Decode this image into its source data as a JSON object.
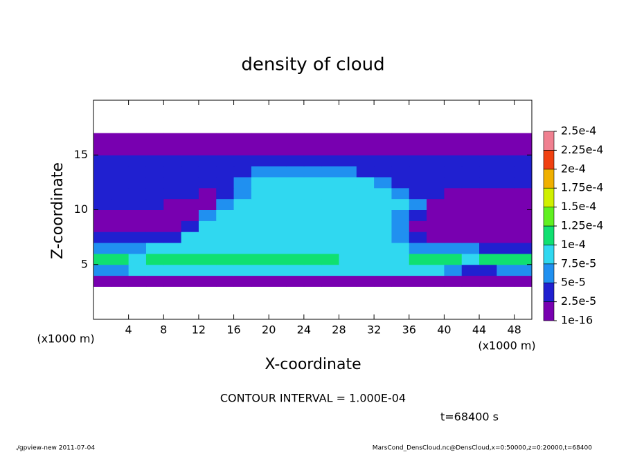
{
  "chart_data": {
    "type": "heatmap",
    "title": "density of cloud",
    "xlabel": "X-coordinate",
    "ylabel": "Z-coordinate",
    "xunit": "(x1000 m)",
    "yunit": "(x1000 m)",
    "annotation": "CONTOUR INTERVAL = 1.000E-04",
    "time_label": "t=68400 s",
    "footer_left": "./gpview-new  2011-07-04",
    "footer_right": "MarsCond_DensCloud.nc@DensCloud,x=0:50000,z=0:20000,t=68400",
    "xlim": [
      0,
      50
    ],
    "ylim": [
      0,
      20
    ],
    "xticks": [
      4,
      8,
      12,
      16,
      20,
      24,
      28,
      32,
      36,
      40,
      44,
      48
    ],
    "yticks": [
      5,
      10,
      15
    ],
    "levels": [
      {
        "value": 1e-16,
        "label": "1e-16"
      },
      {
        "value": 2.5e-05,
        "label": "2.5e-5"
      },
      {
        "value": 5e-05,
        "label": "5e-5"
      },
      {
        "value": 7.5e-05,
        "label": "7.5e-5"
      },
      {
        "value": 0.0001,
        "label": "1e-4"
      },
      {
        "value": 0.000125,
        "label": "1.25e-4"
      },
      {
        "value": 0.00015,
        "label": "1.5e-4"
      },
      {
        "value": 0.000175,
        "label": "1.75e-4"
      },
      {
        "value": 0.0002,
        "label": "2e-4"
      },
      {
        "value": 0.000225,
        "label": "2.25e-4"
      },
      {
        "value": 0.00025,
        "label": "2.5e-4"
      }
    ],
    "colors": [
      "#7800b0",
      "#2020d0",
      "#2090f0",
      "#30d8f0",
      "#10e070",
      "#60f020",
      "#d0f000",
      "#f0b000",
      "#f04010",
      "#f08090"
    ],
    "x": [
      1,
      3,
      5,
      7,
      9,
      11,
      13,
      15,
      17,
      19,
      21,
      23,
      25,
      27,
      29,
      31,
      33,
      35,
      37,
      39,
      41,
      43,
      45,
      47,
      49
    ],
    "y": [
      3.5,
      4.5,
      5.5,
      6.5,
      7.5,
      8.5,
      9.5,
      10.5,
      11.5,
      12.5,
      13.5,
      14.5,
      15.5,
      16.5
    ],
    "z": [
      [
        1e-05,
        1e-05,
        1e-05,
        1e-05,
        1e-05,
        1e-05,
        1e-05,
        1e-05,
        1e-05,
        1e-05,
        1e-05,
        1e-05,
        1e-05,
        1e-05,
        1e-05,
        1e-05,
        1e-05,
        1e-05,
        1e-05,
        1e-05,
        1e-05,
        1e-05,
        1e-05,
        1e-05,
        1e-05
      ],
      [
        6e-05,
        6e-05,
        8.5e-05,
        8.5e-05,
        8.5e-05,
        8.5e-05,
        8.5e-05,
        8.5e-05,
        8.5e-05,
        8.5e-05,
        8.5e-05,
        8.5e-05,
        8.5e-05,
        8.5e-05,
        8.5e-05,
        8.5e-05,
        8.5e-05,
        8.5e-05,
        8.5e-05,
        8.5e-05,
        6e-05,
        3e-05,
        3e-05,
        6e-05,
        6e-05
      ],
      [
        0.00011,
        0.00011,
        8.5e-05,
        0.00011,
        0.00011,
        0.00011,
        0.00011,
        0.00011,
        0.00011,
        0.00011,
        0.00011,
        0.00011,
        0.00011,
        0.00011,
        8.5e-05,
        8.5e-05,
        8.5e-05,
        8.5e-05,
        0.00011,
        0.00011,
        0.00011,
        8.5e-05,
        0.00011,
        0.00011,
        0.00011
      ],
      [
        6e-05,
        6e-05,
        6e-05,
        8.5e-05,
        8.5e-05,
        8.5e-05,
        8.5e-05,
        8.5e-05,
        8.5e-05,
        8.5e-05,
        8.5e-05,
        8.5e-05,
        8.5e-05,
        8.5e-05,
        8.5e-05,
        8.5e-05,
        8.5e-05,
        8.5e-05,
        6e-05,
        6e-05,
        6e-05,
        6e-05,
        3e-05,
        3e-05,
        3e-05
      ],
      [
        3e-05,
        3e-05,
        3e-05,
        3e-05,
        3e-05,
        8.5e-05,
        8.5e-05,
        8.5e-05,
        8.5e-05,
        8.5e-05,
        8.5e-05,
        8.5e-05,
        8.5e-05,
        8.5e-05,
        8.5e-05,
        8.5e-05,
        8.5e-05,
        6e-05,
        3e-05,
        1e-05,
        1e-05,
        1e-05,
        1e-05,
        1e-05,
        1e-05
      ],
      [
        1e-05,
        1e-05,
        1e-05,
        1e-05,
        1e-05,
        3e-05,
        8.5e-05,
        8.5e-05,
        8.5e-05,
        8.5e-05,
        8.5e-05,
        8.5e-05,
        8.5e-05,
        8.5e-05,
        8.5e-05,
        8.5e-05,
        8.5e-05,
        6e-05,
        1e-05,
        1e-05,
        1e-05,
        1e-05,
        1e-05,
        1e-05,
        1e-05
      ],
      [
        1e-05,
        1e-05,
        1e-05,
        1e-05,
        1e-05,
        1e-05,
        6e-05,
        8.5e-05,
        8.5e-05,
        8.5e-05,
        8.5e-05,
        8.5e-05,
        8.5e-05,
        8.5e-05,
        8.5e-05,
        8.5e-05,
        8.5e-05,
        6e-05,
        3e-05,
        1e-05,
        1e-05,
        1e-05,
        1e-05,
        1e-05,
        1e-05
      ],
      [
        3e-05,
        3e-05,
        3e-05,
        3e-05,
        1e-05,
        1e-05,
        1e-05,
        6e-05,
        8.5e-05,
        8.5e-05,
        8.5e-05,
        8.5e-05,
        8.5e-05,
        8.5e-05,
        8.5e-05,
        8.5e-05,
        8.5e-05,
        8.5e-05,
        6e-05,
        1e-05,
        1e-05,
        1e-05,
        1e-05,
        1e-05,
        1e-05
      ],
      [
        3e-05,
        3e-05,
        3e-05,
        3e-05,
        3e-05,
        3e-05,
        1e-05,
        3e-05,
        6e-05,
        8.5e-05,
        8.5e-05,
        8.5e-05,
        8.5e-05,
        8.5e-05,
        8.5e-05,
        8.5e-05,
        8.5e-05,
        6e-05,
        3e-05,
        3e-05,
        1e-05,
        1e-05,
        1e-05,
        1e-05,
        1e-05
      ],
      [
        3e-05,
        3e-05,
        3e-05,
        3e-05,
        3e-05,
        3e-05,
        3e-05,
        3e-05,
        6e-05,
        8.5e-05,
        8.5e-05,
        8.5e-05,
        8.5e-05,
        8.5e-05,
        8.5e-05,
        8.5e-05,
        6e-05,
        3e-05,
        3e-05,
        3e-05,
        3e-05,
        3e-05,
        3e-05,
        3e-05,
        3e-05
      ],
      [
        3e-05,
        3e-05,
        3e-05,
        3e-05,
        3e-05,
        3e-05,
        3e-05,
        3e-05,
        3e-05,
        6e-05,
        6e-05,
        6e-05,
        6e-05,
        6e-05,
        6e-05,
        3e-05,
        3e-05,
        3e-05,
        3e-05,
        3e-05,
        3e-05,
        3e-05,
        3e-05,
        3e-05,
        3e-05
      ],
      [
        3e-05,
        3e-05,
        3e-05,
        3e-05,
        3e-05,
        3e-05,
        3e-05,
        3e-05,
        3e-05,
        3e-05,
        3e-05,
        3e-05,
        3e-05,
        3e-05,
        3e-05,
        3e-05,
        3e-05,
        3e-05,
        3e-05,
        3e-05,
        3e-05,
        3e-05,
        3e-05,
        3e-05,
        3e-05
      ],
      [
        1e-05,
        1e-05,
        1e-05,
        1e-05,
        1e-05,
        1e-05,
        1e-05,
        1e-05,
        1e-05,
        1e-05,
        1e-05,
        1e-05,
        1e-05,
        1e-05,
        1e-05,
        1e-05,
        1e-05,
        1e-05,
        1e-05,
        1e-05,
        1e-05,
        1e-05,
        1e-05,
        1e-05,
        1e-05
      ],
      [
        1e-05,
        1e-05,
        1e-05,
        1e-05,
        1e-05,
        1e-05,
        1e-05,
        1e-05,
        1e-05,
        1e-05,
        1e-05,
        1e-05,
        1e-05,
        1e-05,
        1e-05,
        1e-05,
        1e-05,
        1e-05,
        1e-05,
        1e-05,
        1e-05,
        1e-05,
        1e-05,
        1e-05,
        1e-05
      ]
    ]
  }
}
